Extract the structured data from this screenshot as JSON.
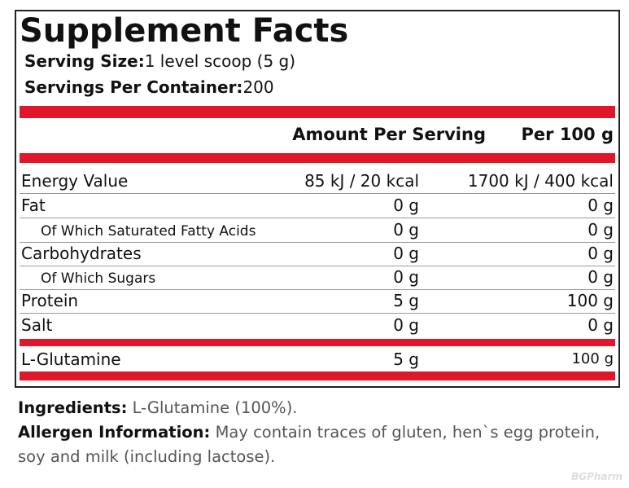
{
  "header": {
    "title": "Supplement Facts",
    "serving_size_label": "Serving Size:",
    "serving_size": "1 level scoop (5 g)",
    "servings_label": "Servings Per Container:",
    "servings": "200"
  },
  "table": {
    "columns": [
      "Amount Per Serving",
      "Per 100 g"
    ],
    "rows": [
      [
        "Energy Value",
        "85 kJ / 20 kcal",
        "1700 kJ / 400 kcal"
      ],
      [
        "Fat",
        "0 g",
        "0 g"
      ],
      [
        "Of Which Saturated Fatty Acids",
        "0 g",
        "0 g"
      ],
      [
        "Carbohydrates",
        "0 g",
        "0 g"
      ],
      [
        "Of Which Sugars",
        "0 g",
        "0 g"
      ],
      [
        "Protein",
        "5 g",
        "100 g"
      ],
      [
        "Salt",
        "0 g",
        "0 g"
      ],
      [
        "L-Glutamine",
        "5 g",
        "100 g"
      ]
    ]
  },
  "ingredients": {
    "label": "Ingredients:",
    "text": "L-Glutamine (100%)."
  },
  "allergen": {
    "label": "Allergen Information:",
    "text": "May contain traces of gluten, hen`s egg protein, soy and milk (including lactose)."
  },
  "watermark": "BGPharm"
}
